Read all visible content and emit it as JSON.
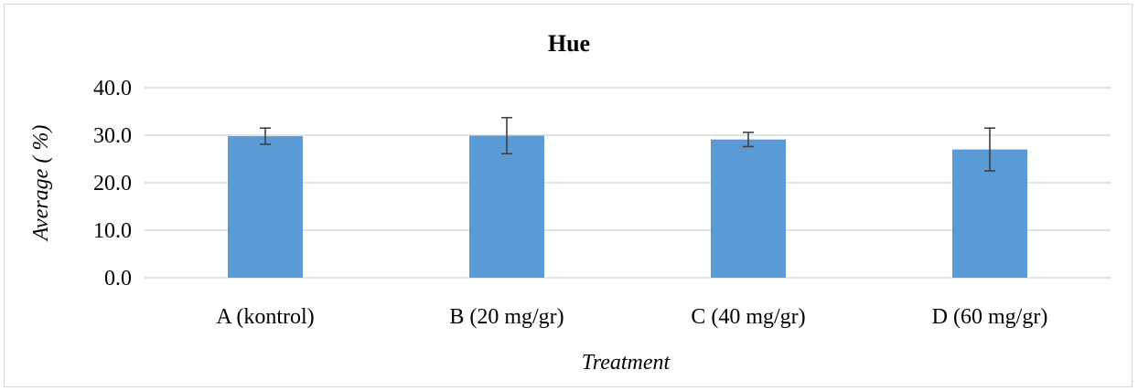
{
  "chart_data": {
    "type": "bar",
    "title": "Hue",
    "xlabel": "Treatment",
    "ylabel": "Average ( %)",
    "categories": [
      "A (kontrol)",
      "B (20 mg/gr)",
      "C (40 mg/gr)",
      "D (60 mg/gr)"
    ],
    "values": [
      29.8,
      29.9,
      29.1,
      27.0
    ],
    "error": [
      1.7,
      3.8,
      1.5,
      4.5
    ],
    "ylim": [
      0,
      40
    ],
    "yticks": [
      "0.0",
      "10.0",
      "20.0",
      "30.0",
      "40.0"
    ],
    "grid": true,
    "legend": "none",
    "bar_color": "#5b9bd5",
    "error_color": "#404040"
  }
}
